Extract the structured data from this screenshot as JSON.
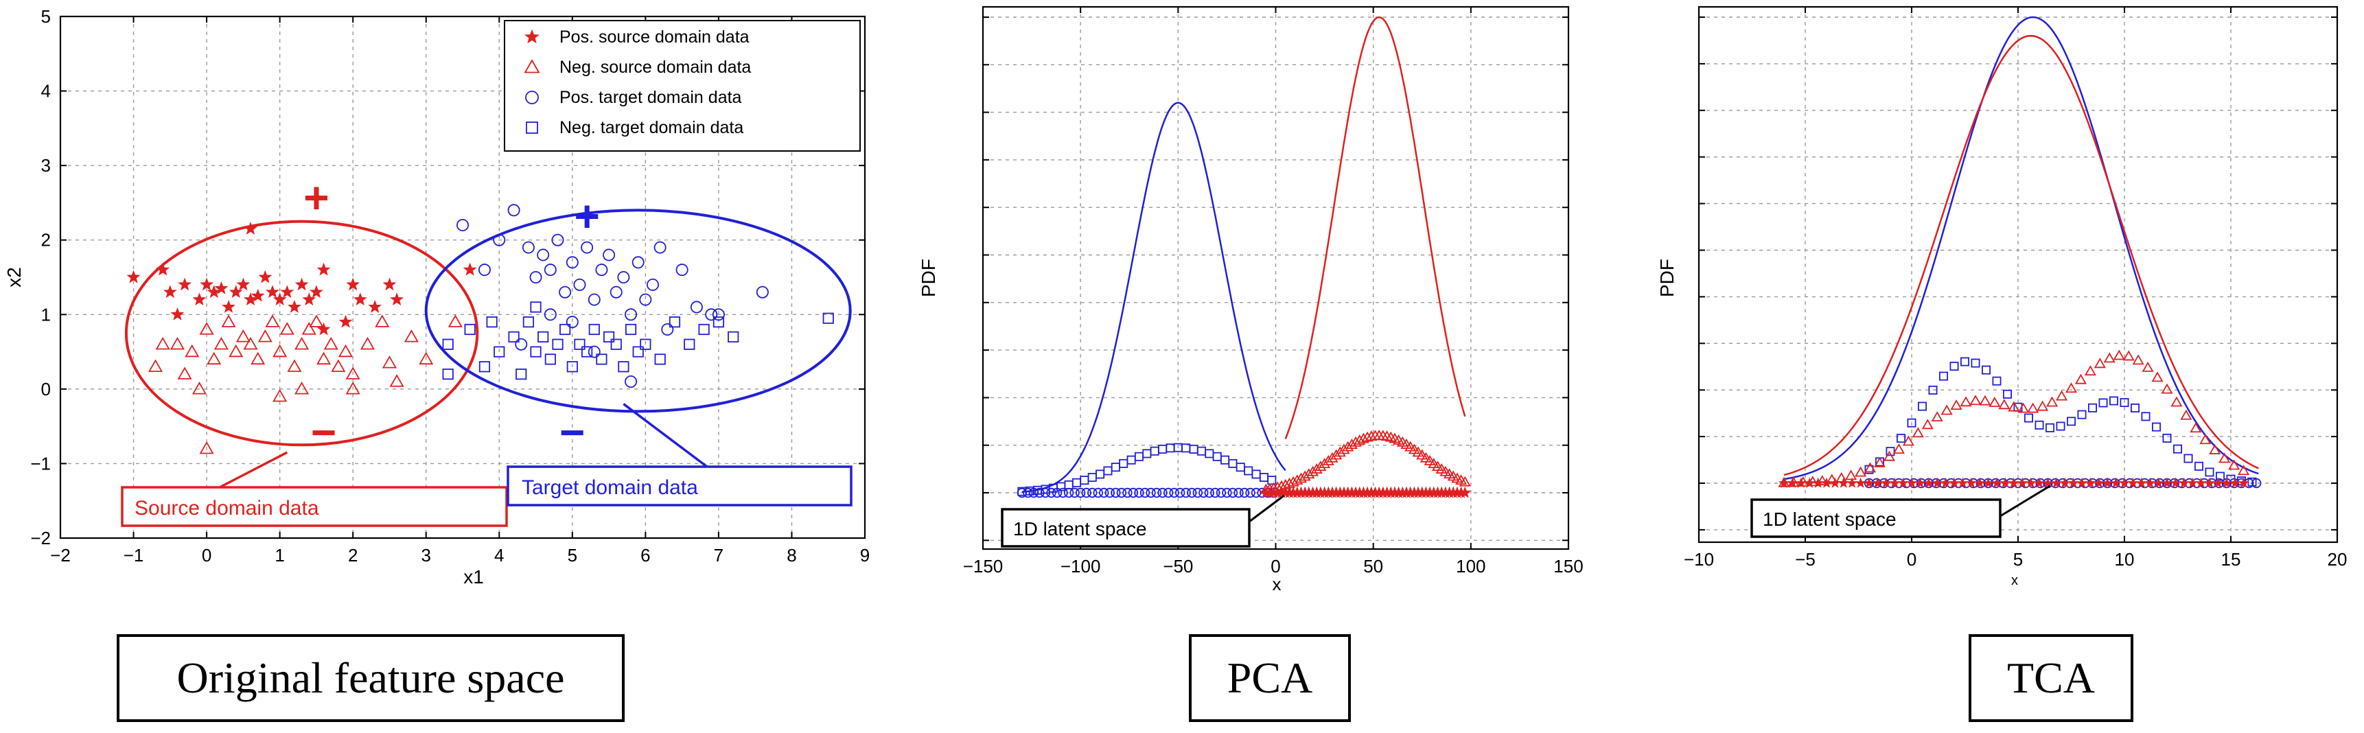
{
  "colors": {
    "source": "#e02020",
    "target": "#2020d8",
    "grid": "#9a9a9a",
    "axis": "#000000"
  },
  "chart_data": [
    {
      "type": "scatter",
      "title": "",
      "xlabel": "x1",
      "ylabel": "x2",
      "xlim": [
        -2,
        9
      ],
      "ylim": [
        -2,
        5
      ],
      "xticks": [
        -2,
        -1,
        0,
        1,
        2,
        3,
        4,
        5,
        6,
        7,
        8,
        9
      ],
      "yticks": [
        -2,
        -1,
        0,
        1,
        2,
        3,
        4,
        5
      ],
      "grid": true,
      "legend_position": "top-right",
      "series": [
        {
          "name": "Pos. source domain data",
          "marker": "star",
          "color": "#e02020",
          "points": [
            [
              -1.0,
              1.5
            ],
            [
              -0.6,
              1.6
            ],
            [
              -0.5,
              1.3
            ],
            [
              -0.4,
              1.0
            ],
            [
              -0.3,
              1.4
            ],
            [
              -0.1,
              1.2
            ],
            [
              0.0,
              1.4
            ],
            [
              0.1,
              1.3
            ],
            [
              0.2,
              1.35
            ],
            [
              0.3,
              1.1
            ],
            [
              0.4,
              1.3
            ],
            [
              0.5,
              1.4
            ],
            [
              0.6,
              1.2
            ],
            [
              0.7,
              1.25
            ],
            [
              0.8,
              1.5
            ],
            [
              0.9,
              1.3
            ],
            [
              1.0,
              1.2
            ],
            [
              1.1,
              1.3
            ],
            [
              1.2,
              1.1
            ],
            [
              1.3,
              1.4
            ],
            [
              1.4,
              1.2
            ],
            [
              1.5,
              1.3
            ],
            [
              1.6,
              1.6
            ],
            [
              2.0,
              1.4
            ],
            [
              2.1,
              1.2
            ],
            [
              2.3,
              1.1
            ],
            [
              2.5,
              1.4
            ],
            [
              2.6,
              1.2
            ],
            [
              0.6,
              2.15
            ],
            [
              3.6,
              1.6
            ],
            [
              1.6,
              0.8
            ],
            [
              1.9,
              0.9
            ]
          ]
        },
        {
          "name": "Neg. source domain data",
          "marker": "triangle",
          "color": "#e02020",
          "points": [
            [
              -0.7,
              0.3
            ],
            [
              -0.6,
              0.6
            ],
            [
              -0.4,
              0.6
            ],
            [
              -0.3,
              0.2
            ],
            [
              -0.2,
              0.5
            ],
            [
              -0.1,
              0.0
            ],
            [
              0.0,
              0.8
            ],
            [
              0.1,
              0.4
            ],
            [
              0.2,
              0.6
            ],
            [
              0.3,
              0.9
            ],
            [
              0.4,
              0.5
            ],
            [
              0.5,
              0.7
            ],
            [
              0.6,
              0.6
            ],
            [
              0.7,
              0.4
            ],
            [
              0.8,
              0.7
            ],
            [
              0.9,
              0.9
            ],
            [
              1.0,
              0.5
            ],
            [
              1.1,
              0.8
            ],
            [
              1.2,
              0.3
            ],
            [
              1.3,
              0.6
            ],
            [
              1.4,
              0.8
            ],
            [
              1.5,
              0.9
            ],
            [
              1.6,
              0.4
            ],
            [
              1.7,
              0.6
            ],
            [
              1.8,
              0.3
            ],
            [
              1.9,
              0.5
            ],
            [
              2.0,
              0.2
            ],
            [
              2.2,
              0.6
            ],
            [
              2.4,
              0.9
            ],
            [
              2.6,
              0.1
            ],
            [
              2.8,
              0.7
            ],
            [
              3.0,
              0.4
            ],
            [
              3.4,
              0.9
            ],
            [
              0.0,
              -0.8
            ],
            [
              1.0,
              -0.1
            ],
            [
              1.3,
              0.0
            ],
            [
              2.0,
              0.0
            ],
            [
              2.5,
              0.35
            ]
          ]
        },
        {
          "name": "Pos. target domain data",
          "marker": "circle",
          "color": "#2020d8",
          "points": [
            [
              3.5,
              2.2
            ],
            [
              3.8,
              1.6
            ],
            [
              4.0,
              2.0
            ],
            [
              4.2,
              2.4
            ],
            [
              4.4,
              1.9
            ],
            [
              4.5,
              1.5
            ],
            [
              4.6,
              1.8
            ],
            [
              4.7,
              1.6
            ],
            [
              4.8,
              2.0
            ],
            [
              4.9,
              1.3
            ],
            [
              5.0,
              1.7
            ],
            [
              5.1,
              1.4
            ],
            [
              5.2,
              1.9
            ],
            [
              5.3,
              1.2
            ],
            [
              5.4,
              1.6
            ],
            [
              5.5,
              1.8
            ],
            [
              5.6,
              1.3
            ],
            [
              5.7,
              1.5
            ],
            [
              5.8,
              1.0
            ],
            [
              5.9,
              1.7
            ],
            [
              6.0,
              1.2
            ],
            [
              6.1,
              1.4
            ],
            [
              6.3,
              0.8
            ],
            [
              6.5,
              1.6
            ],
            [
              6.7,
              1.1
            ],
            [
              6.9,
              1.0
            ],
            [
              7.0,
              1.0
            ],
            [
              7.6,
              1.3
            ],
            [
              5.3,
              0.5
            ],
            [
              4.7,
              1.0
            ],
            [
              6.2,
              1.9
            ],
            [
              5.0,
              0.9
            ],
            [
              4.3,
              0.6
            ],
            [
              5.8,
              0.1
            ]
          ]
        },
        {
          "name": "Neg. target domain data",
          "marker": "square",
          "color": "#2020d8",
          "points": [
            [
              3.6,
              0.8
            ],
            [
              3.8,
              0.3
            ],
            [
              3.9,
              0.9
            ],
            [
              4.0,
              0.5
            ],
            [
              4.2,
              0.7
            ],
            [
              4.3,
              0.2
            ],
            [
              4.4,
              0.9
            ],
            [
              4.5,
              0.5
            ],
            [
              4.6,
              0.7
            ],
            [
              4.7,
              0.4
            ],
            [
              4.8,
              0.6
            ],
            [
              4.9,
              0.8
            ],
            [
              5.0,
              0.3
            ],
            [
              5.1,
              0.6
            ],
            [
              5.2,
              0.5
            ],
            [
              5.3,
              0.8
            ],
            [
              5.4,
              0.4
            ],
            [
              5.5,
              0.7
            ],
            [
              5.6,
              0.6
            ],
            [
              5.7,
              0.3
            ],
            [
              5.8,
              0.8
            ],
            [
              5.9,
              0.5
            ],
            [
              6.0,
              0.6
            ],
            [
              6.2,
              0.4
            ],
            [
              6.4,
              0.9
            ],
            [
              6.6,
              0.6
            ],
            [
              6.8,
              0.8
            ],
            [
              7.0,
              0.9
            ],
            [
              7.2,
              0.7
            ],
            [
              8.5,
              0.95
            ],
            [
              3.3,
              0.6
            ],
            [
              3.3,
              0.2
            ],
            [
              4.5,
              1.1
            ]
          ]
        }
      ],
      "annotations": [
        {
          "text": "+",
          "x": 1.5,
          "y": 2.55,
          "color": "#e02020"
        },
        {
          "text": "−",
          "x": 1.6,
          "y": -0.6,
          "color": "#e02020"
        },
        {
          "text": "+",
          "x": 5.2,
          "y": 2.3,
          "color": "#2020d8"
        },
        {
          "text": "−",
          "x": 5.0,
          "y": -0.6,
          "color": "#2020d8"
        }
      ],
      "ellipses": [
        {
          "cx": 1.3,
          "cy": 0.75,
          "rx": 2.4,
          "ry": 1.5,
          "color": "#e02020"
        },
        {
          "cx": 5.9,
          "cy": 1.05,
          "rx": 2.9,
          "ry": 1.35,
          "color": "#2020d8"
        }
      ],
      "callouts": [
        {
          "text": "Source domain data",
          "color": "#e02020",
          "arrow_to": [
            1.1,
            -0.85
          ]
        },
        {
          "text": "Target domain data",
          "color": "#2020d8",
          "arrow_to": [
            5.7,
            -0.2
          ]
        }
      ]
    },
    {
      "type": "line",
      "title": "",
      "xlabel": "x",
      "ylabel": "PDF",
      "xlim": [
        -150,
        150
      ],
      "xticks": [
        -150,
        -100,
        -50,
        0,
        50,
        100,
        150
      ],
      "grid": true,
      "series": [
        {
          "name": "target PDF",
          "color": "#2020d8",
          "mean": -50,
          "sd": 23,
          "peak": 0.82,
          "xrange": [
            -130,
            5
          ]
        },
        {
          "name": "source PDF",
          "color": "#e02020",
          "mean": 53,
          "sd": 23,
          "peak": 1.0,
          "xrange": [
            5,
            97
          ]
        },
        {
          "name": "target markers",
          "color": "#2020d8",
          "mean": -50,
          "sd": 30,
          "peak": 0.095,
          "xrange": [
            -130,
            0
          ]
        },
        {
          "name": "source markers",
          "color": "#e02020",
          "mean": 53,
          "sd": 24,
          "peak": 0.12,
          "xrange": [
            -5,
            97
          ]
        }
      ],
      "callouts": [
        {
          "text": "1D latent space",
          "arrow_to": [
            5,
            0
          ]
        }
      ]
    },
    {
      "type": "line",
      "title": "",
      "xlabel": "x",
      "ylabel": "PDF",
      "xlim": [
        -10,
        20
      ],
      "xticks": [
        -10,
        -5,
        0,
        5,
        10,
        15,
        20
      ],
      "grid": true,
      "series": [
        {
          "name": "target PDF",
          "color": "#2020d8",
          "mean": 5.7,
          "sd": 3.8,
          "peak": 1.0,
          "xrange": [
            -6,
            16.3
          ]
        },
        {
          "name": "source PDF",
          "color": "#e02020",
          "mean": 5.6,
          "sd": 4.1,
          "peak": 0.96,
          "xrange": [
            -6,
            16.3
          ]
        },
        {
          "name": "target markers",
          "color": "#2020d8",
          "peaks": [
            [
              2.6,
              0.26
            ],
            [
              9.6,
              0.175
            ]
          ],
          "xrange": [
            -2,
            16.3
          ]
        },
        {
          "name": "source markers",
          "color": "#e02020",
          "peaks": [
            [
              2.8,
              0.17
            ],
            [
              10.0,
              0.27
            ]
          ],
          "xrange": [
            -6,
            16
          ]
        }
      ],
      "callouts": [
        {
          "text": "1D latent space",
          "arrow_to": [
            6.5,
            0
          ]
        }
      ]
    }
  ],
  "captions": [
    "Original feature space",
    "PCA",
    "TCA"
  ]
}
